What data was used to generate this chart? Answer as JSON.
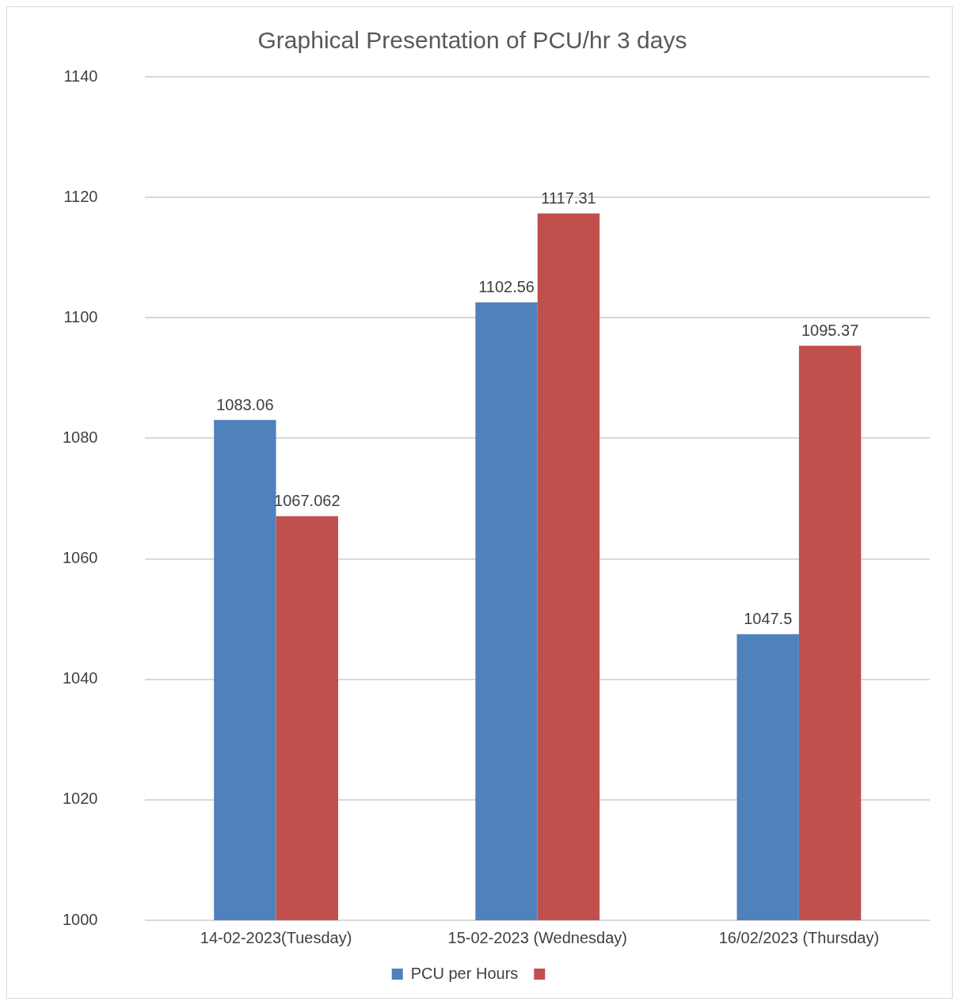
{
  "chart_data": {
    "type": "bar",
    "title": "Graphical Presentation of PCU/hr 3 days",
    "categories": [
      "14-02-2023(Tuesday)",
      "15-02-2023 (Wednesday)",
      "16/02/2023 (Thursday)"
    ],
    "series": [
      {
        "name": "PCU per Hours",
        "color": "#4f81bd",
        "values": [
          1083.06,
          1102.56,
          1047.5
        ]
      },
      {
        "color": "#c0504d",
        "values": [
          1067.062,
          1117.31,
          1095.37
        ]
      }
    ],
    "ylim": [
      1000,
      1140
    ],
    "yticks": [
      1000,
      1020,
      1040,
      1060,
      1080,
      1100,
      1120,
      1140
    ],
    "grid": "y",
    "legend": "bottom",
    "data_labels": true
  }
}
